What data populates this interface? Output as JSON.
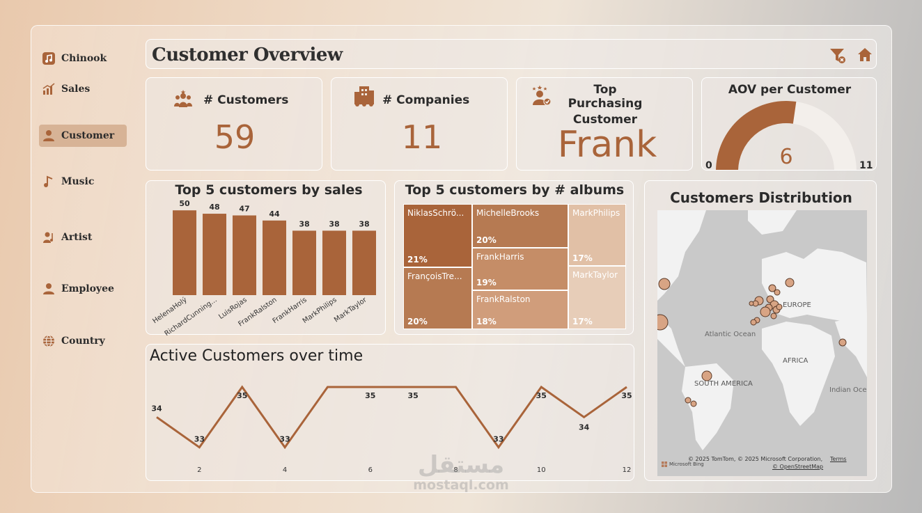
{
  "nav": {
    "items": [
      {
        "label": "Chinook",
        "icon": "music-app-icon"
      },
      {
        "label": "Sales",
        "icon": "chart-icon"
      },
      {
        "label": "Customer",
        "icon": "user-icon"
      },
      {
        "label": "Music",
        "icon": "music-note-icon"
      },
      {
        "label": "Artist",
        "icon": "artist-icon"
      },
      {
        "label": "Employee",
        "icon": "employee-icon"
      },
      {
        "label": "Country",
        "icon": "globe-icon"
      }
    ],
    "active": "Customer"
  },
  "header": {
    "title": "Customer Overview",
    "clear_filter_icon": "clear-filter-icon",
    "home_icon": "home-icon"
  },
  "kpis": {
    "customers": {
      "label": "# Customers",
      "value": "59"
    },
    "companies": {
      "label": "# Companies",
      "value": "11"
    },
    "top_customer": {
      "label_line1": "Top Purchasing",
      "label_line2": "Customer",
      "value": "Frank"
    },
    "aov": {
      "label": "AOV per Customer",
      "value": "6",
      "min": "0",
      "max": "11"
    }
  },
  "colors": {
    "accent": "#a9643a",
    "accent_light": "#d39c76",
    "gauge_track": "#f3efeb"
  },
  "sales_chart": {
    "title": "Top 5 customers by sales",
    "chart_data": {
      "type": "bar",
      "categories": [
        "HelenaHolý",
        "RichardCunning...",
        "LuisRojas",
        "FrankRalston",
        "FrankHarris",
        "MarkPhilips",
        "MarkTaylor"
      ],
      "values": [
        50,
        48,
        47,
        44,
        38,
        38,
        38
      ],
      "ylim": [
        0,
        55
      ]
    }
  },
  "albums_chart": {
    "title": "Top 5 customers by # albums",
    "cells": [
      {
        "name": "NiklasSchrö...",
        "pct": "21%",
        "color": "#a9643a"
      },
      {
        "name": "FrançoisTre...",
        "pct": "20%",
        "color": "#b67a52"
      },
      {
        "name": "MichelleBrooks",
        "pct": "20%",
        "color": "#b67a52"
      },
      {
        "name": "FrankHarris",
        "pct": "19%",
        "color": "#c58d67"
      },
      {
        "name": "FrankRalston",
        "pct": "18%",
        "color": "#d09d7b"
      },
      {
        "name": "MarkPhilips",
        "pct": "17%",
        "color": "#e1c0a6"
      },
      {
        "name": "MarkTaylor",
        "pct": "17%",
        "color": "#e7cdb8"
      }
    ]
  },
  "active_chart": {
    "title": "Active Customers over time",
    "chart_data": {
      "type": "line",
      "x": [
        1,
        2,
        3,
        4,
        5,
        6,
        7,
        8,
        9,
        10,
        11,
        12
      ],
      "values": [
        34,
        33,
        35,
        33,
        35,
        35,
        35,
        35,
        33,
        35,
        34,
        35
      ],
      "x_ticks": [
        "2",
        "4",
        "6",
        "8",
        "10",
        "12"
      ],
      "data_labels": [
        {
          "i": 0,
          "text": "34"
        },
        {
          "i": 1,
          "text": "33"
        },
        {
          "i": 2,
          "text": "35"
        },
        {
          "i": 3,
          "text": "33"
        },
        {
          "i": 5,
          "text": "35"
        },
        {
          "i": 6,
          "text": "35"
        },
        {
          "i": 8,
          "text": "33"
        },
        {
          "i": 9,
          "text": "35"
        },
        {
          "i": 10,
          "text": "34"
        },
        {
          "i": 11,
          "text": "35"
        }
      ],
      "ylim": [
        32.6,
        35.3
      ]
    }
  },
  "map": {
    "title": "Customers Distribution",
    "labels": [
      "Atlantic Ocean",
      "EUROPE",
      "AFRICA",
      "SOUTH AMERICA",
      "Indian Oce"
    ],
    "copyright": "© 2025 TomTom, © 2025 Microsoft Corporation,",
    "terms": "Terms",
    "osm": "© OpenStreetMap",
    "bing": "Microsoft Bing"
  },
  "watermark": {
    "arabic": "مستقل",
    "latin": "mostaql.com"
  }
}
